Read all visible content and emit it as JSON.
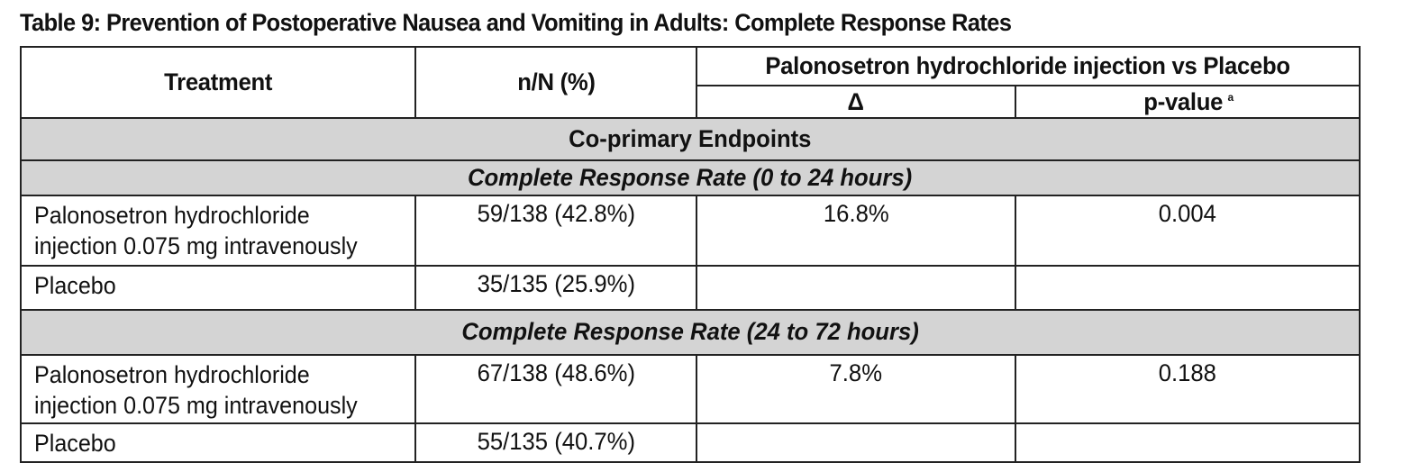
{
  "caption": "Table 9: Prevention of Postoperative Nausea and Vomiting in Adults: Complete Response Rates",
  "header": {
    "treatment": "Treatment",
    "nN": "n/N (%)",
    "comparison": "Palonosetron hydrochloride injection vs Placebo",
    "delta": "Δ",
    "pvalue": "p-value",
    "pvalue_footnote": "a"
  },
  "section_title": "Co-primary Endpoints",
  "groups": [
    {
      "title": "Complete Response Rate (0 to 24 hours)",
      "rows": [
        {
          "treatment_line1": "Palonosetron hydrochloride",
          "treatment_line2": "injection 0.075 mg intravenously",
          "nN": "59/138 (42.8%)",
          "delta": "16.8%",
          "pvalue": "0.004"
        },
        {
          "treatment_line1": "Placebo",
          "treatment_line2": "",
          "nN": "35/135 (25.9%)",
          "delta": "",
          "pvalue": ""
        }
      ]
    },
    {
      "title": "Complete Response Rate (24 to 72 hours)",
      "rows": [
        {
          "treatment_line1": "Palonosetron hydrochloride",
          "treatment_line2": "injection 0.075 mg intravenously",
          "nN": "67/138 (48.6%)",
          "delta": "7.8%",
          "pvalue": "0.188"
        },
        {
          "treatment_line1": "Placebo",
          "treatment_line2": "",
          "nN": "55/135 (40.7%)",
          "delta": "",
          "pvalue": ""
        }
      ]
    }
  ]
}
